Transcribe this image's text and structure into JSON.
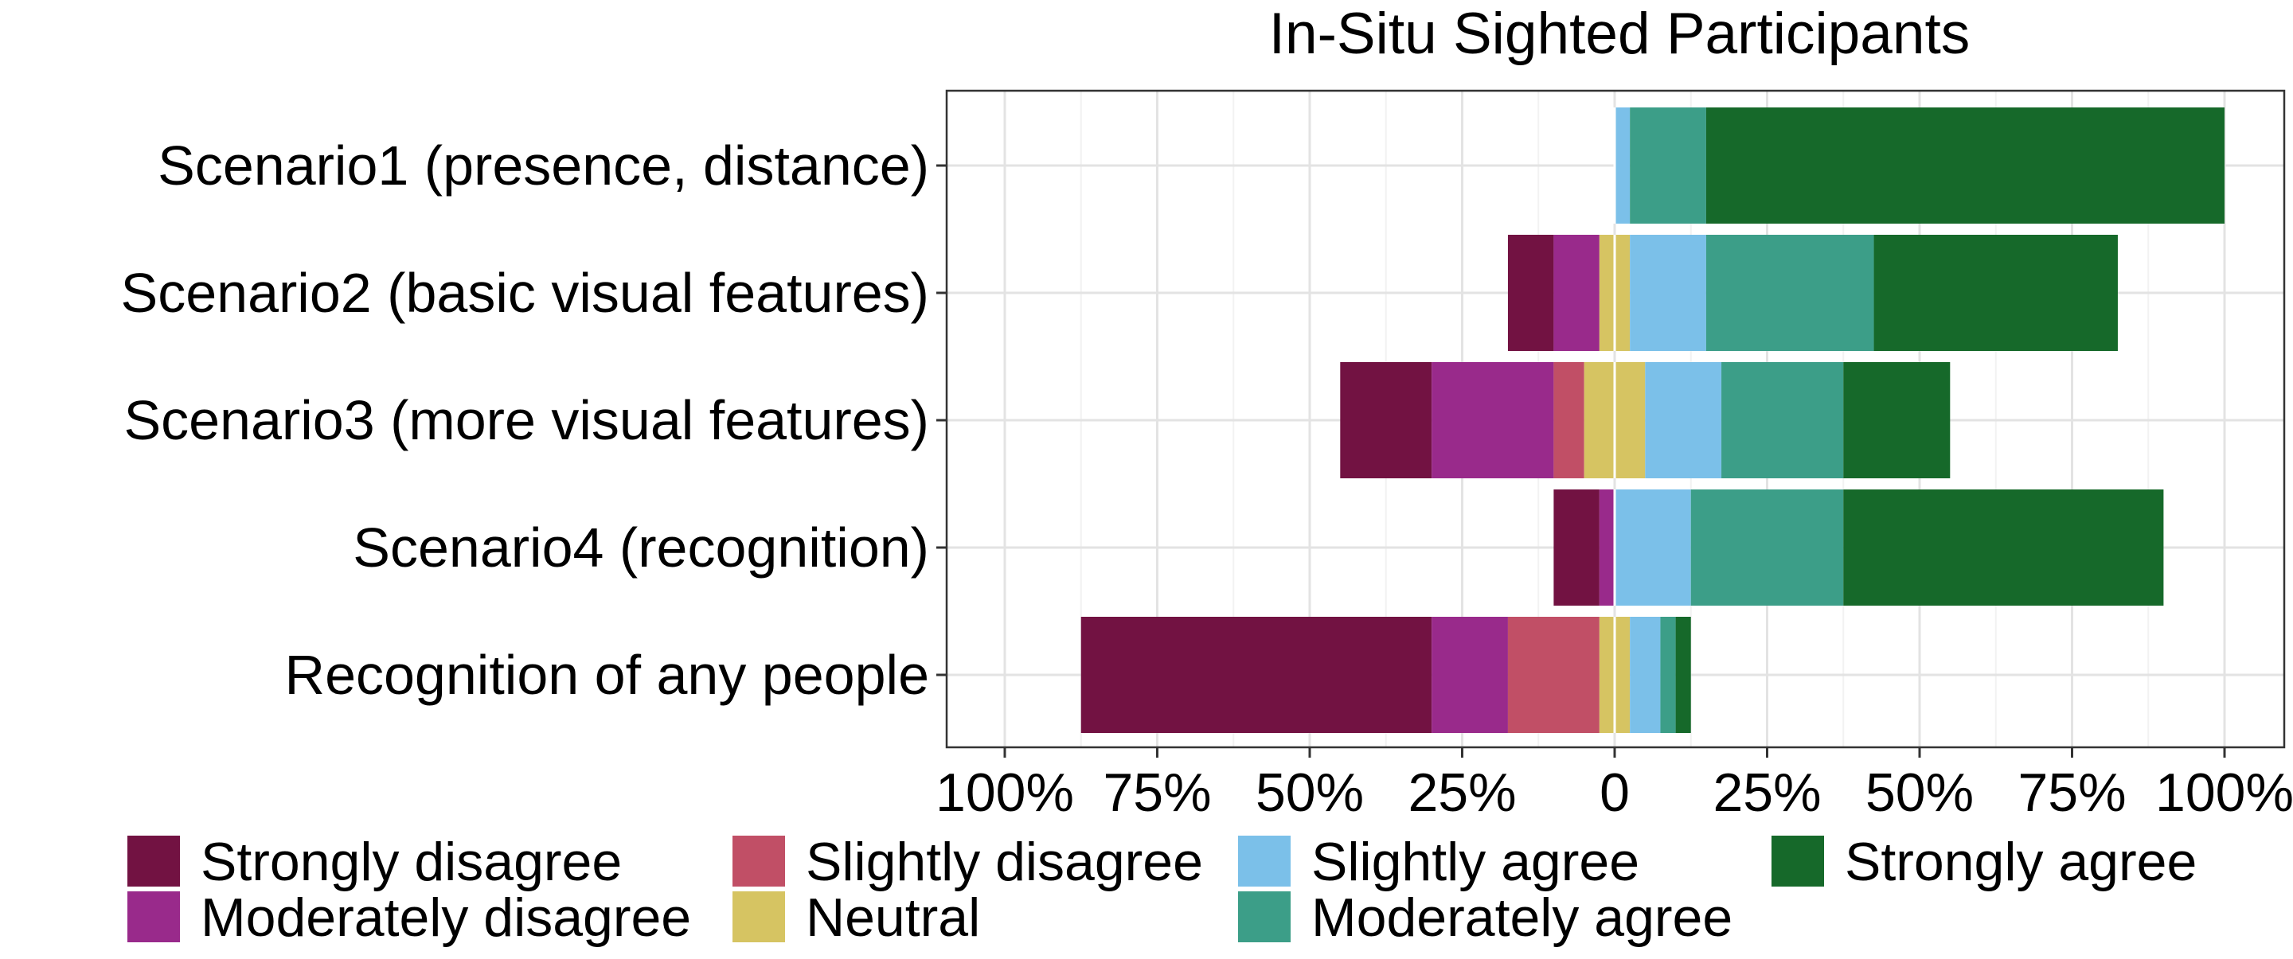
{
  "chart_data": {
    "type": "bar",
    "orientation": "horizontal",
    "stacked": "diverging",
    "title": "In-Situ Sighted Participants",
    "xlabel": "",
    "ylabel": "",
    "xlim": [
      -1.0,
      1.0
    ],
    "grid": true,
    "legend_position": "bottom",
    "x_ticks": [
      {
        "value": -1.0,
        "label": "100%"
      },
      {
        "value": -0.75,
        "label": "75%"
      },
      {
        "value": -0.5,
        "label": "50%"
      },
      {
        "value": -0.25,
        "label": "25%"
      },
      {
        "value": 0,
        "label": "0"
      },
      {
        "value": 0.25,
        "label": "25%"
      },
      {
        "value": 0.5,
        "label": "50%"
      },
      {
        "value": 0.75,
        "label": "75%"
      },
      {
        "value": 1.0,
        "label": "100%"
      }
    ],
    "categories": [
      "Scenario1 (presence, distance)",
      "Scenario2 (basic visual features)",
      "Scenario3 (more visual features)",
      "Scenario4 (recognition)",
      "Recognition of any people"
    ],
    "series": [
      {
        "name": "Strongly disagree",
        "color": "#721242",
        "side": "negative",
        "values": [
          0,
          0.075,
          0.15,
          0.075,
          0.575
        ]
      },
      {
        "name": "Moderately disagree",
        "color": "#992a8b",
        "side": "negative",
        "values": [
          0,
          0.075,
          0.2,
          0.025,
          0.125
        ]
      },
      {
        "name": "Slightly disagree",
        "color": "#c14f66",
        "side": "negative",
        "values": [
          0,
          0,
          0.05,
          0,
          0.15
        ]
      },
      {
        "name": "Neutral",
        "color": "#d6c462",
        "side": "split",
        "values": [
          0,
          0.05,
          0.1,
          0,
          0.05
        ]
      },
      {
        "name": "Slightly agree",
        "color": "#7bc0e9",
        "side": "positive",
        "values": [
          0.025,
          0.125,
          0.125,
          0.125,
          0.05
        ]
      },
      {
        "name": "Moderately agree",
        "color": "#3c9e88",
        "side": "positive",
        "values": [
          0.125,
          0.275,
          0.2,
          0.25,
          0.025
        ]
      },
      {
        "name": "Strongly agree",
        "color": "#16692a",
        "side": "positive",
        "values": [
          0.85,
          0.4,
          0.175,
          0.525,
          0.025
        ]
      }
    ]
  }
}
